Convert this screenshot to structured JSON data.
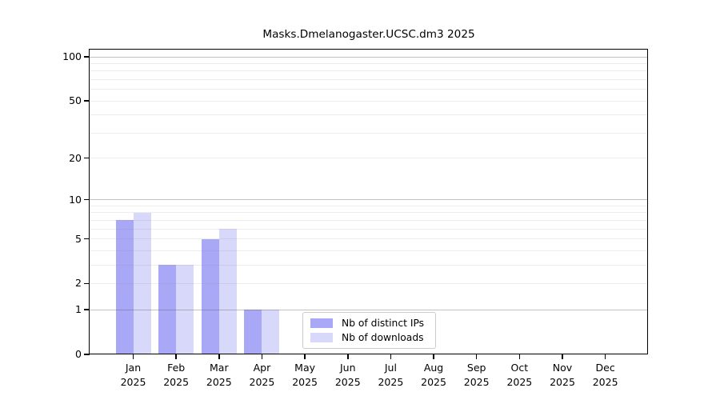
{
  "title": "Masks.Dmelanogaster.UCSC.dm3 2025",
  "colors": {
    "background": "#ffffff",
    "axis": "#000000",
    "text": "#000000",
    "grid_major_on_white": "#c2c2c2",
    "grid_minor_on_white": "#ededed",
    "legend_border": "#cccccc",
    "bar_distinct_ips": "#a8a8f6",
    "bar_downloads": "#d8d8fa"
  },
  "chart_data": {
    "type": "bar",
    "title": "Masks.Dmelanogaster.UCSC.dm3 2025",
    "xlabel": "",
    "ylabel": "",
    "categories": [
      "Jan 2025",
      "Feb 2025",
      "Mar 2025",
      "Apr 2025",
      "May 2025",
      "Jun 2025",
      "Jul 2025",
      "Aug 2025",
      "Sep 2025",
      "Oct 2025",
      "Nov 2025",
      "Dec 2025"
    ],
    "series": [
      {
        "name": "Nb of distinct IPs",
        "color": "#a8a8f6",
        "values": [
          7,
          3,
          5,
          1,
          0,
          0,
          0,
          0,
          0,
          0,
          0,
          0
        ]
      },
      {
        "name": "Nb of downloads",
        "color": "#d8d8fa",
        "values": [
          8,
          3,
          6,
          1,
          0,
          0,
          0,
          0,
          0,
          0,
          0,
          0
        ]
      }
    ],
    "yscale": "log1p",
    "ylim": [
      0,
      112
    ],
    "y_ticks": [
      0,
      1,
      2,
      5,
      10,
      20,
      50,
      100
    ],
    "y_grid_major": [
      1,
      10,
      100
    ],
    "y_grid_minor": [
      2,
      3,
      4,
      5,
      6,
      7,
      8,
      9,
      20,
      30,
      40,
      50,
      60,
      70,
      80,
      90
    ],
    "grid": "on",
    "legend": {
      "position": "lower center",
      "entries": [
        "Nb of distinct IPs",
        "Nb of downloads"
      ]
    }
  }
}
